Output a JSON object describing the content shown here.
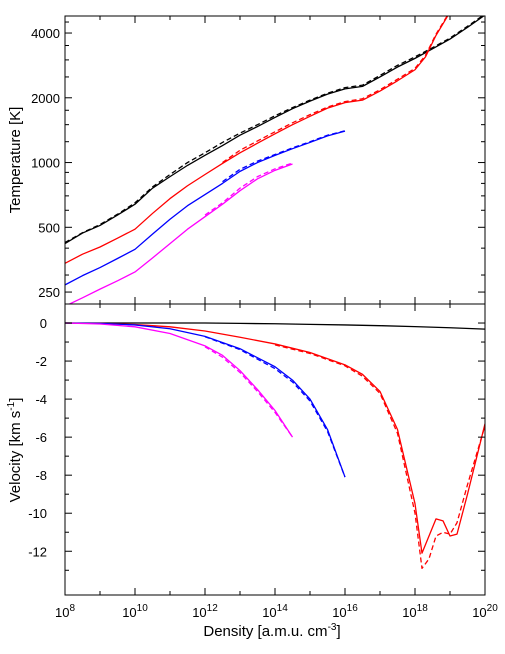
{
  "chart_data": [
    {
      "type": "line",
      "panel": "top",
      "xlabel": "",
      "ylabel": "Temperature [K]",
      "xscale": "log",
      "yscale": "log",
      "xlim": [
        100000000.0,
        1e+20
      ],
      "ylim": [
        220,
        4800
      ],
      "yticks": [
        250,
        500,
        1000,
        2000,
        4000
      ],
      "yticklabels": [
        "250",
        "500",
        "1000",
        "2000",
        "4000"
      ],
      "grid": false,
      "series": [
        {
          "color": "#000000",
          "dash": false,
          "x": [
            8,
            8.5,
            9,
            9.5,
            10,
            10.5,
            11,
            11.5,
            12,
            12.5,
            13,
            13.5,
            14,
            14.5,
            15,
            15.5,
            16,
            16.5,
            17,
            17.5,
            18,
            18.5,
            19,
            19.5,
            20
          ],
          "y": [
            420,
            470,
            510,
            570,
            640,
            760,
            860,
            970,
            1080,
            1200,
            1340,
            1470,
            1620,
            1780,
            1930,
            2080,
            2200,
            2260,
            2500,
            2780,
            3050,
            3380,
            3750,
            4250,
            4850
          ]
        },
        {
          "color": "#000000",
          "dash": true,
          "x": [
            8,
            8.5,
            9,
            9.5,
            10,
            10.5,
            11,
            11.5,
            12,
            12.5,
            13,
            13.5,
            14,
            14.5,
            15,
            15.5,
            16,
            16.5,
            17,
            17.5,
            18,
            18.5,
            19,
            19.5,
            20
          ],
          "y": [
            425,
            472,
            515,
            575,
            650,
            770,
            880,
            1000,
            1110,
            1240,
            1370,
            1500,
            1650,
            1800,
            1950,
            2100,
            2230,
            2290,
            2540,
            2830,
            3100,
            3420,
            3790,
            4300,
            4900
          ]
        },
        {
          "color": "#ff0000",
          "dash": false,
          "x": [
            8,
            8.5,
            9,
            9.5,
            10,
            10.5,
            11,
            11.5,
            12,
            12.5,
            13,
            13.5,
            14,
            14.5,
            15,
            15.5,
            16,
            16.5,
            17,
            17.5,
            18,
            18.3,
            18.6,
            18.9,
            19.05
          ],
          "y": [
            340,
            375,
            405,
            445,
            490,
            580,
            680,
            780,
            880,
            990,
            1110,
            1230,
            1360,
            1500,
            1640,
            1790,
            1900,
            1950,
            2150,
            2400,
            2700,
            3100,
            3900,
            4700,
            5200
          ]
        },
        {
          "color": "#ff0000",
          "dash": true,
          "x": [
            12.5,
            13,
            13.5,
            14,
            14.5,
            15,
            15.5,
            16,
            16.5,
            17,
            17.5,
            18,
            18.3,
            18.6,
            18.9,
            19.05
          ],
          "y": [
            1000,
            1140,
            1260,
            1390,
            1530,
            1670,
            1810,
            1920,
            1980,
            2180,
            2440,
            2740,
            3150,
            3950,
            4750,
            5250
          ]
        },
        {
          "color": "#0000ff",
          "dash": false,
          "x": [
            8,
            8.5,
            9,
            9.5,
            10,
            10.5,
            11,
            11.5,
            12,
            12.5,
            13,
            13.5,
            14,
            14.5,
            15,
            15.5,
            16
          ],
          "y": [
            270,
            298,
            325,
            358,
            395,
            465,
            545,
            630,
            710,
            800,
            910,
            1000,
            1080,
            1160,
            1240,
            1330,
            1400
          ]
        },
        {
          "color": "#0000ff",
          "dash": true,
          "x": [
            12.5,
            13,
            13.5,
            14,
            14.5,
            15,
            15.5,
            16
          ],
          "y": [
            815,
            930,
            1015,
            1090,
            1170,
            1250,
            1340,
            1405
          ]
        },
        {
          "color": "#ff00ff",
          "dash": false,
          "x": [
            8,
            8.5,
            9,
            9.5,
            10,
            10.5,
            11,
            11.5,
            12,
            12.5,
            13,
            13.5,
            14,
            14.5
          ],
          "y": [
            215,
            235,
            258,
            282,
            310,
            360,
            420,
            490,
            560,
            640,
            740,
            840,
            920,
            985
          ]
        },
        {
          "color": "#ff00ff",
          "dash": true,
          "x": [
            12,
            12.5,
            13,
            13.5,
            14,
            14.5
          ],
          "y": [
            570,
            650,
            760,
            860,
            935,
            995
          ]
        }
      ]
    },
    {
      "type": "line",
      "panel": "bottom",
      "xlabel": "Density [a.m.u. cm",
      "xlabel_sup": "-3",
      "xlabel_end": "]",
      "ylabel": "Velocity [km s",
      "ylabel_sup": "-1",
      "ylabel_end": "]",
      "xscale": "log",
      "xlim": [
        100000000.0,
        1e+20
      ],
      "ylim": [
        -14.3,
        1
      ],
      "xticks": [
        8,
        10,
        12,
        14,
        16,
        18,
        20
      ],
      "xtick_base": "10",
      "yticks": [
        0,
        -2,
        -4,
        -6,
        -8,
        -10,
        -12
      ],
      "yticklabels": [
        "0",
        "-2",
        "-4",
        "-6",
        "-8",
        "-10",
        "-12"
      ],
      "grid": false,
      "series": [
        {
          "color": "#000000",
          "dash": false,
          "x": [
            8,
            9,
            10,
            11,
            12,
            13,
            14,
            15,
            16,
            17,
            18,
            19,
            20
          ],
          "y": [
            0,
            0,
            0,
            0,
            0,
            -0.02,
            -0.04,
            -0.07,
            -0.1,
            -0.14,
            -0.19,
            -0.25,
            -0.32
          ]
        },
        {
          "color": "#ff0000",
          "dash": false,
          "x": [
            8,
            9,
            10,
            11,
            12,
            13,
            14,
            15,
            16,
            16.5,
            17,
            17.5,
            18,
            18.2,
            18.4,
            18.6,
            18.8,
            19,
            19.2,
            19.5,
            20
          ],
          "y": [
            0,
            -0.02,
            -0.08,
            -0.2,
            -0.42,
            -0.75,
            -1.1,
            -1.55,
            -2.2,
            -2.7,
            -3.6,
            -5.6,
            -9.5,
            -12.1,
            -11.2,
            -10.3,
            -10.4,
            -11.2,
            -11.1,
            -9,
            -5.3
          ]
        },
        {
          "color": "#ff0000",
          "dash": true,
          "x": [
            14,
            15,
            16,
            16.5,
            17,
            17.5,
            18,
            18.2,
            18.4,
            18.6,
            18.8,
            19,
            19.2,
            19.5,
            20
          ],
          "y": [
            -1.15,
            -1.6,
            -2.25,
            -2.8,
            -3.7,
            -5.8,
            -10,
            -12.9,
            -12.4,
            -11.2,
            -11,
            -11.1,
            -10.5,
            -8.5,
            -5.4
          ]
        },
        {
          "color": "#0000ff",
          "dash": false,
          "x": [
            8,
            9,
            10,
            11,
            12,
            13,
            14,
            14.5,
            15,
            15.5,
            16
          ],
          "y": [
            0,
            -0.02,
            -0.1,
            -0.3,
            -0.7,
            -1.35,
            -2.3,
            -3,
            -4,
            -5.6,
            -8.1
          ]
        },
        {
          "color": "#0000ff",
          "dash": true,
          "x": [
            12,
            13,
            14,
            14.5,
            15,
            15.5,
            16
          ],
          "y": [
            -0.72,
            -1.4,
            -2.4,
            -3.1,
            -4.1,
            -5.7,
            -8.1
          ]
        },
        {
          "color": "#ff00ff",
          "dash": false,
          "x": [
            8,
            9,
            10,
            11,
            12,
            12.5,
            13,
            13.5,
            14,
            14.5
          ],
          "y": [
            0,
            -0.05,
            -0.2,
            -0.55,
            -1.2,
            -1.7,
            -2.5,
            -3.5,
            -4.6,
            -6
          ]
        },
        {
          "color": "#ff00ff",
          "dash": true,
          "x": [
            12,
            12.5,
            13,
            13.5,
            14,
            14.5
          ],
          "y": [
            -1.25,
            -1.8,
            -2.6,
            -3.6,
            -4.7,
            -6
          ]
        }
      ]
    }
  ]
}
